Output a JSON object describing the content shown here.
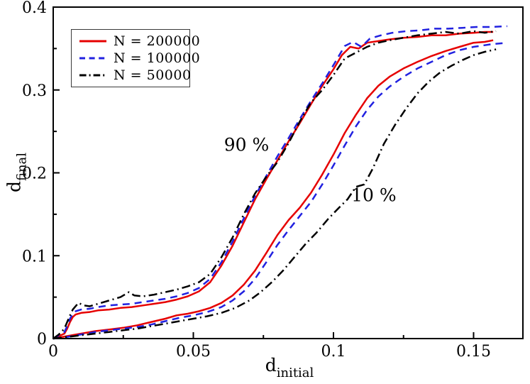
{
  "figure": {
    "background": "#ffffff",
    "border_color": "#000000"
  },
  "chart_data": {
    "type": "line",
    "title": "",
    "xlabel": {
      "base": "d",
      "sub": "initial"
    },
    "ylabel": {
      "base": "d",
      "sub": "final"
    },
    "xlim": [
      0,
      0.1676
    ],
    "ylim": [
      0,
      0.4
    ],
    "grid": false,
    "legend_position": "top-left",
    "x_axis": {
      "major": [
        0,
        0.05,
        0.1,
        0.15
      ],
      "labels": [
        "0",
        "0.05",
        "0.1",
        "0.15"
      ],
      "minor": [
        0.025,
        0.075,
        0.125
      ]
    },
    "y_axis": {
      "major": [
        0,
        0.1,
        0.2,
        0.3,
        0.4
      ],
      "labels": [
        "0",
        "0.1",
        "0.2",
        "0.3",
        "0.4"
      ],
      "minor": [
        0.05,
        0.15,
        0.25,
        0.35
      ]
    },
    "annotations": [
      {
        "text": "90 %",
        "x": 0.069,
        "y": 0.234
      },
      {
        "text": "10 %",
        "x": 0.1144,
        "y": 0.173
      }
    ],
    "series": [
      {
        "label": "N = 200000",
        "color": "#e60000",
        "dash": [],
        "curves": {
          "p90": [
            [
              0,
              0
            ],
            [
              0.002,
              0.003
            ],
            [
              0.004,
              0.006
            ],
            [
              0.005,
              0.012
            ],
            [
              0.006,
              0.02
            ],
            [
              0.007,
              0.026
            ],
            [
              0.008,
              0.029
            ],
            [
              0.01,
              0.031
            ],
            [
              0.013,
              0.032
            ],
            [
              0.016,
              0.034
            ],
            [
              0.02,
              0.035
            ],
            [
              0.024,
              0.037
            ],
            [
              0.028,
              0.038
            ],
            [
              0.032,
              0.04
            ],
            [
              0.036,
              0.042
            ],
            [
              0.04,
              0.044
            ],
            [
              0.044,
              0.047
            ],
            [
              0.048,
              0.051
            ],
            [
              0.052,
              0.057
            ],
            [
              0.056,
              0.068
            ],
            [
              0.06,
              0.088
            ],
            [
              0.064,
              0.112
            ],
            [
              0.068,
              0.14
            ],
            [
              0.072,
              0.168
            ],
            [
              0.076,
              0.192
            ],
            [
              0.08,
              0.215
            ],
            [
              0.084,
              0.238
            ],
            [
              0.088,
              0.26
            ],
            [
              0.092,
              0.283
            ],
            [
              0.096,
              0.305
            ],
            [
              0.1,
              0.325
            ],
            [
              0.103,
              0.342
            ],
            [
              0.106,
              0.352
            ],
            [
              0.109,
              0.35
            ],
            [
              0.112,
              0.357
            ],
            [
              0.116,
              0.359
            ],
            [
              0.12,
              0.361
            ],
            [
              0.125,
              0.363
            ],
            [
              0.13,
              0.364
            ],
            [
              0.135,
              0.366
            ],
            [
              0.14,
              0.366
            ],
            [
              0.145,
              0.368
            ],
            [
              0.15,
              0.369
            ],
            [
              0.154,
              0.37
            ],
            [
              0.157,
              0.37
            ]
          ],
          "p10": [
            [
              0,
              0
            ],
            [
              0.005,
              0.003
            ],
            [
              0.01,
              0.006
            ],
            [
              0.015,
              0.009
            ],
            [
              0.02,
              0.011
            ],
            [
              0.025,
              0.013
            ],
            [
              0.03,
              0.016
            ],
            [
              0.035,
              0.02
            ],
            [
              0.04,
              0.024
            ],
            [
              0.044,
              0.028
            ],
            [
              0.048,
              0.03
            ],
            [
              0.052,
              0.033
            ],
            [
              0.056,
              0.037
            ],
            [
              0.06,
              0.043
            ],
            [
              0.064,
              0.052
            ],
            [
              0.068,
              0.065
            ],
            [
              0.072,
              0.082
            ],
            [
              0.076,
              0.103
            ],
            [
              0.08,
              0.125
            ],
            [
              0.084,
              0.143
            ],
            [
              0.088,
              0.158
            ],
            [
              0.092,
              0.176
            ],
            [
              0.096,
              0.198
            ],
            [
              0.1,
              0.222
            ],
            [
              0.104,
              0.248
            ],
            [
              0.108,
              0.27
            ],
            [
              0.112,
              0.29
            ],
            [
              0.116,
              0.305
            ],
            [
              0.12,
              0.316
            ],
            [
              0.125,
              0.326
            ],
            [
              0.13,
              0.334
            ],
            [
              0.135,
              0.341
            ],
            [
              0.14,
              0.347
            ],
            [
              0.145,
              0.352
            ],
            [
              0.15,
              0.357
            ],
            [
              0.154,
              0.358
            ],
            [
              0.157,
              0.36
            ]
          ]
        }
      },
      {
        "label": "N = 100000",
        "color": "#2121e0",
        "dash": [
          10,
          7
        ],
        "curves": {
          "p90": [
            [
              0,
              0
            ],
            [
              0.002,
              0.004
            ],
            [
              0.004,
              0.008
            ],
            [
              0.005,
              0.015
            ],
            [
              0.006,
              0.024
            ],
            [
              0.007,
              0.03
            ],
            [
              0.008,
              0.033
            ],
            [
              0.01,
              0.035
            ],
            [
              0.013,
              0.036
            ],
            [
              0.016,
              0.038
            ],
            [
              0.02,
              0.04
            ],
            [
              0.024,
              0.041
            ],
            [
              0.028,
              0.042
            ],
            [
              0.032,
              0.044
            ],
            [
              0.036,
              0.046
            ],
            [
              0.04,
              0.048
            ],
            [
              0.044,
              0.051
            ],
            [
              0.048,
              0.055
            ],
            [
              0.052,
              0.061
            ],
            [
              0.056,
              0.072
            ],
            [
              0.06,
              0.092
            ],
            [
              0.064,
              0.117
            ],
            [
              0.068,
              0.145
            ],
            [
              0.072,
              0.172
            ],
            [
              0.076,
              0.196
            ],
            [
              0.08,
              0.22
            ],
            [
              0.084,
              0.242
            ],
            [
              0.088,
              0.265
            ],
            [
              0.092,
              0.287
            ],
            [
              0.096,
              0.308
            ],
            [
              0.1,
              0.33
            ],
            [
              0.104,
              0.353
            ],
            [
              0.107,
              0.358
            ],
            [
              0.11,
              0.352
            ],
            [
              0.113,
              0.362
            ],
            [
              0.117,
              0.366
            ],
            [
              0.121,
              0.369
            ],
            [
              0.126,
              0.371
            ],
            [
              0.131,
              0.372
            ],
            [
              0.136,
              0.374
            ],
            [
              0.141,
              0.374
            ],
            [
              0.146,
              0.375
            ],
            [
              0.151,
              0.376
            ],
            [
              0.156,
              0.376
            ],
            [
              0.162,
              0.377
            ]
          ],
          "p10": [
            [
              0,
              0
            ],
            [
              0.005,
              0.002
            ],
            [
              0.01,
              0.005
            ],
            [
              0.015,
              0.008
            ],
            [
              0.02,
              0.01
            ],
            [
              0.025,
              0.012
            ],
            [
              0.03,
              0.014
            ],
            [
              0.035,
              0.017
            ],
            [
              0.04,
              0.021
            ],
            [
              0.045,
              0.025
            ],
            [
              0.05,
              0.028
            ],
            [
              0.055,
              0.032
            ],
            [
              0.06,
              0.038
            ],
            [
              0.064,
              0.046
            ],
            [
              0.068,
              0.057
            ],
            [
              0.072,
              0.072
            ],
            [
              0.076,
              0.092
            ],
            [
              0.08,
              0.113
            ],
            [
              0.084,
              0.131
            ],
            [
              0.088,
              0.148
            ],
            [
              0.092,
              0.165
            ],
            [
              0.096,
              0.186
            ],
            [
              0.1,
              0.209
            ],
            [
              0.104,
              0.233
            ],
            [
              0.108,
              0.256
            ],
            [
              0.112,
              0.276
            ],
            [
              0.116,
              0.292
            ],
            [
              0.12,
              0.304
            ],
            [
              0.125,
              0.316
            ],
            [
              0.13,
              0.326
            ],
            [
              0.135,
              0.334
            ],
            [
              0.14,
              0.342
            ],
            [
              0.145,
              0.348
            ],
            [
              0.15,
              0.352
            ],
            [
              0.156,
              0.355
            ],
            [
              0.162,
              0.357
            ]
          ]
        }
      },
      {
        "label": "N = 50000",
        "color": "#000000",
        "dash": [
          12,
          5,
          2,
          5
        ],
        "curves": {
          "p90": [
            [
              0,
              0
            ],
            [
              0.002,
              0.005
            ],
            [
              0.004,
              0.012
            ],
            [
              0.005,
              0.02
            ],
            [
              0.006,
              0.028
            ],
            [
              0.007,
              0.035
            ],
            [
              0.009,
              0.043
            ],
            [
              0.011,
              0.04
            ],
            [
              0.013,
              0.039
            ],
            [
              0.016,
              0.042
            ],
            [
              0.02,
              0.046
            ],
            [
              0.024,
              0.05
            ],
            [
              0.027,
              0.056
            ],
            [
              0.029,
              0.052
            ],
            [
              0.032,
              0.051
            ],
            [
              0.036,
              0.053
            ],
            [
              0.04,
              0.056
            ],
            [
              0.044,
              0.059
            ],
            [
              0.048,
              0.063
            ],
            [
              0.052,
              0.068
            ],
            [
              0.056,
              0.078
            ],
            [
              0.06,
              0.098
            ],
            [
              0.064,
              0.122
            ],
            [
              0.068,
              0.15
            ],
            [
              0.072,
              0.175
            ],
            [
              0.076,
              0.195
            ],
            [
              0.08,
              0.213
            ],
            [
              0.084,
              0.236
            ],
            [
              0.088,
              0.262
            ],
            [
              0.092,
              0.285
            ],
            [
              0.096,
              0.3
            ],
            [
              0.1,
              0.318
            ],
            [
              0.104,
              0.338
            ],
            [
              0.108,
              0.345
            ],
            [
              0.112,
              0.352
            ],
            [
              0.116,
              0.357
            ],
            [
              0.12,
              0.36
            ],
            [
              0.125,
              0.363
            ],
            [
              0.13,
              0.366
            ],
            [
              0.135,
              0.368
            ],
            [
              0.14,
              0.37
            ],
            [
              0.145,
              0.368
            ],
            [
              0.15,
              0.371
            ],
            [
              0.154,
              0.369
            ],
            [
              0.158,
              0.371
            ]
          ],
          "p10": [
            [
              0,
              0
            ],
            [
              0.005,
              0.002
            ],
            [
              0.01,
              0.004
            ],
            [
              0.015,
              0.006
            ],
            [
              0.02,
              0.008
            ],
            [
              0.025,
              0.01
            ],
            [
              0.03,
              0.012
            ],
            [
              0.035,
              0.015
            ],
            [
              0.04,
              0.018
            ],
            [
              0.045,
              0.021
            ],
            [
              0.05,
              0.024
            ],
            [
              0.055,
              0.027
            ],
            [
              0.06,
              0.031
            ],
            [
              0.065,
              0.037
            ],
            [
              0.07,
              0.046
            ],
            [
              0.074,
              0.056
            ],
            [
              0.078,
              0.068
            ],
            [
              0.082,
              0.082
            ],
            [
              0.086,
              0.098
            ],
            [
              0.09,
              0.114
            ],
            [
              0.094,
              0.128
            ],
            [
              0.098,
              0.144
            ],
            [
              0.102,
              0.158
            ],
            [
              0.105,
              0.168
            ],
            [
              0.108,
              0.183
            ],
            [
              0.111,
              0.186
            ],
            [
              0.114,
              0.205
            ],
            [
              0.118,
              0.235
            ],
            [
              0.122,
              0.258
            ],
            [
              0.126,
              0.278
            ],
            [
              0.13,
              0.296
            ],
            [
              0.134,
              0.31
            ],
            [
              0.138,
              0.321
            ],
            [
              0.142,
              0.329
            ],
            [
              0.146,
              0.336
            ],
            [
              0.15,
              0.342
            ],
            [
              0.154,
              0.346
            ],
            [
              0.158,
              0.349
            ]
          ]
        }
      }
    ]
  }
}
